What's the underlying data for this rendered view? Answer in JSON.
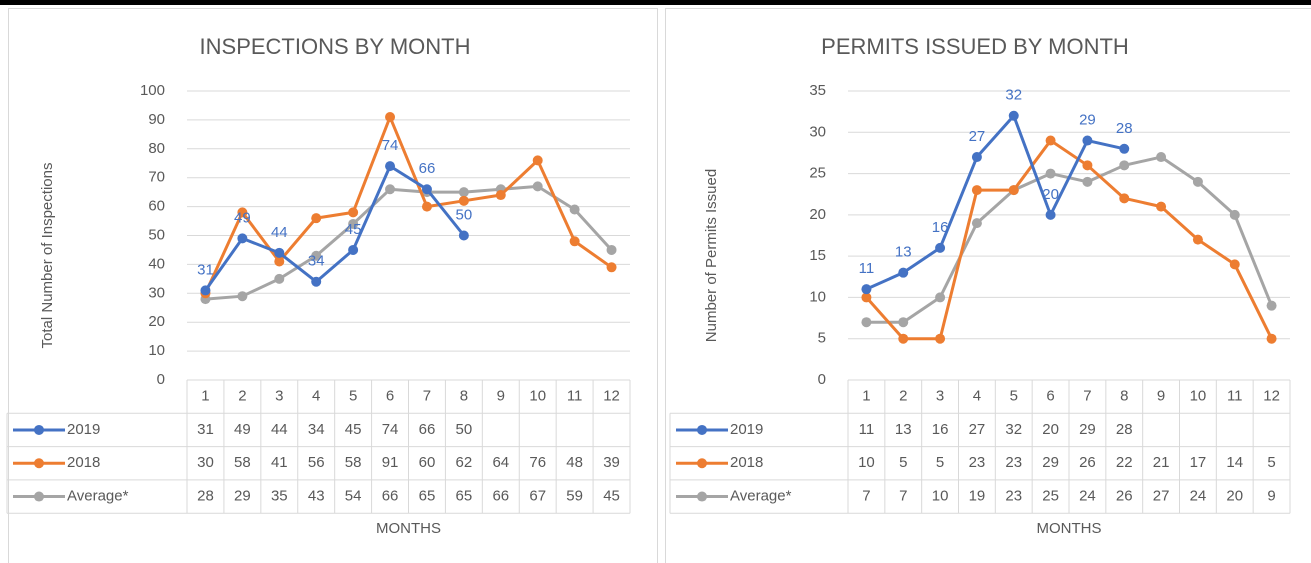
{
  "chart_data": [
    {
      "type": "line",
      "title": "INSPECTIONS BY MONTH",
      "x_label": "MONTHS",
      "y_label": "Total Number of Inspections",
      "categories": [
        1,
        2,
        3,
        4,
        5,
        6,
        7,
        8,
        9,
        10,
        11,
        12
      ],
      "series": [
        {
          "name": "2019",
          "color": "#4472c4",
          "data_labels": true,
          "values": [
            31,
            49,
            44,
            34,
            45,
            74,
            66,
            50,
            null,
            null,
            null,
            null
          ]
        },
        {
          "name": "2018",
          "color": "#ed7d31",
          "values": [
            30,
            58,
            41,
            56,
            58,
            91,
            60,
            62,
            64,
            76,
            48,
            39
          ]
        },
        {
          "name": "Average*",
          "color": "#a5a5a5",
          "values": [
            28,
            29,
            35,
            43,
            54,
            66,
            65,
            65,
            66,
            67,
            59,
            45
          ]
        }
      ],
      "ylim": [
        0,
        100
      ],
      "yticks": [
        0,
        10,
        20,
        30,
        40,
        50,
        60,
        70,
        80,
        90,
        100
      ],
      "grid": true,
      "data_table": true
    },
    {
      "type": "line",
      "title": "PERMITS ISSUED BY MONTH",
      "x_label": "MONTHS",
      "y_label": "Number of Permits Issued",
      "categories": [
        1,
        2,
        3,
        4,
        5,
        6,
        7,
        8,
        9,
        10,
        11,
        12
      ],
      "series": [
        {
          "name": "2019",
          "color": "#4472c4",
          "data_labels": true,
          "values": [
            11,
            13,
            16,
            27,
            32,
            20,
            29,
            28,
            null,
            null,
            null,
            null
          ]
        },
        {
          "name": "2018",
          "color": "#ed7d31",
          "values": [
            10,
            5,
            5,
            23,
            23,
            29,
            26,
            22,
            21,
            17,
            14,
            5
          ]
        },
        {
          "name": "Average*",
          "color": "#a5a5a5",
          "values": [
            7,
            7,
            10,
            19,
            23,
            25,
            24,
            26,
            27,
            24,
            20,
            9
          ]
        }
      ],
      "ylim": [
        0,
        35
      ],
      "yticks": [
        0,
        5,
        10,
        15,
        20,
        25,
        30,
        35
      ],
      "grid": true,
      "data_table": true
    }
  ]
}
